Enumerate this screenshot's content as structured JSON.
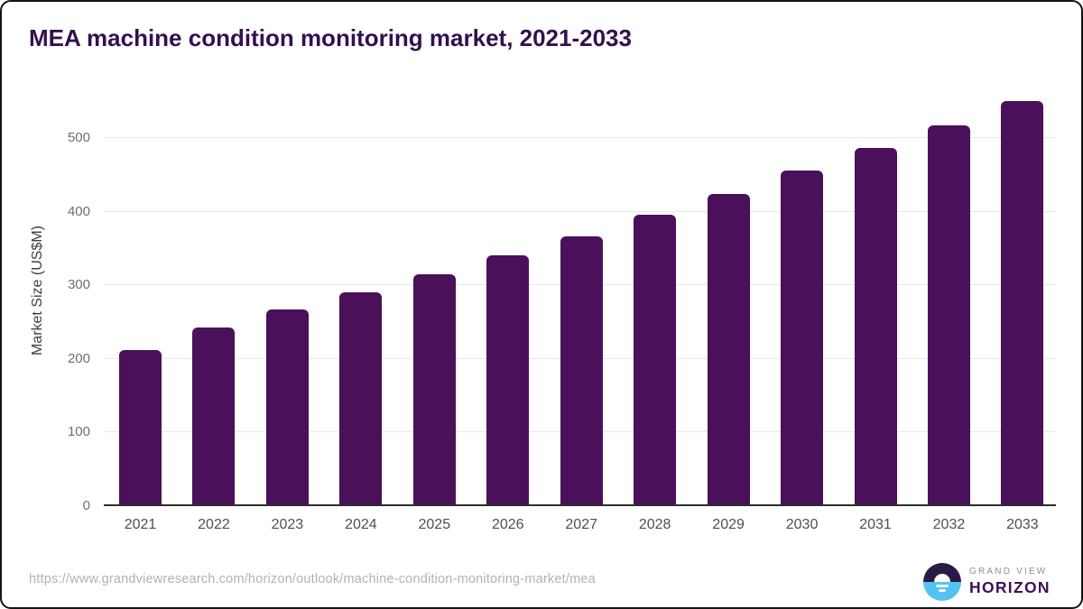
{
  "chart_data": {
    "type": "bar",
    "title": "MEA machine condition monitoring market, 2021-2033",
    "categories": [
      "2021",
      "2022",
      "2023",
      "2024",
      "2025",
      "2026",
      "2027",
      "2028",
      "2029",
      "2030",
      "2031",
      "2032",
      "2033"
    ],
    "values": [
      210,
      240,
      265,
      288,
      312,
      338,
      364,
      393,
      422,
      453,
      484,
      515,
      548
    ],
    "xlabel": "",
    "ylabel": "Market Size (US$M)",
    "yticks": [
      0,
      100,
      200,
      300,
      400,
      500
    ],
    "ylim": [
      0,
      568
    ],
    "grid": "horizontal-only",
    "legend": "none",
    "bar_color": "#4a1059"
  },
  "footer": {
    "source_url": "https://www.grandviewresearch.com/horizon/outlook/machine-condition-monitoring-market/mea",
    "brand_line1": "GRAND VIEW",
    "brand_line2": "HORIZON"
  },
  "colors": {
    "bar": "#4a1059",
    "title_text": "#331050",
    "axis_line": "#2d2d2d",
    "gridline": "#e7e7e7",
    "y_tick_text": "#6f6f6f",
    "x_tick_text": "#4f4f4f",
    "y_axis_title_text": "#3e3e3e",
    "url_text": "#b2b2b5",
    "brand_gray": "#8e8e95",
    "brand_purple": "#3a1157",
    "logo_top_half": "#2a1a45",
    "logo_bottom_half": "#55c3f0"
  }
}
